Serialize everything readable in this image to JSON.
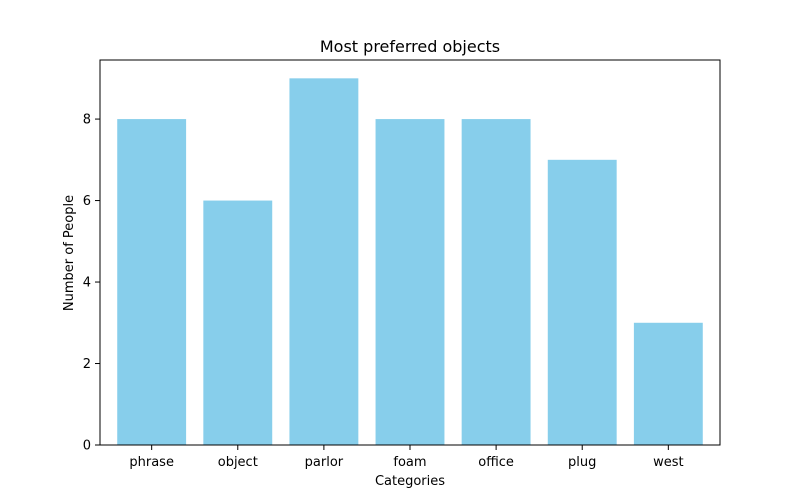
{
  "chart_data": {
    "type": "bar",
    "title": "Most preferred objects",
    "xlabel": "Categories",
    "ylabel": "Number of People",
    "categories": [
      "phrase",
      "object",
      "parlor",
      "foam",
      "office",
      "plug",
      "west"
    ],
    "values": [
      8,
      6,
      9,
      8,
      8,
      7,
      3
    ],
    "ylim": [
      0,
      9.45
    ],
    "yticks": [
      0,
      2,
      4,
      6,
      8
    ],
    "bar_color": "#87ceeb",
    "grid": false,
    "legend": "none"
  }
}
